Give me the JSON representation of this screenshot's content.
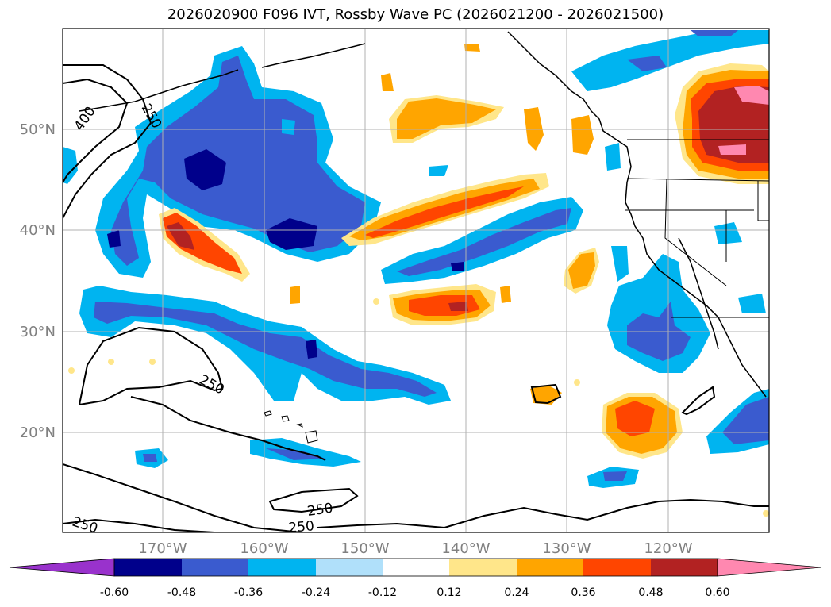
{
  "title": "2026020900 F096 IVT, Rossby Wave PC (2026021200 - 2026021500)",
  "map": {
    "lat_labels": [
      "20°N",
      "30°N",
      "40°N",
      "50°N"
    ],
    "lon_labels": [
      "170°W",
      "160°W",
      "150°W",
      "140°W",
      "130°W",
      "120°W"
    ],
    "contour_labels": [
      "250",
      "400",
      "250",
      "250",
      "250",
      "250"
    ]
  },
  "colorbar": {
    "colors": [
      "#9932cc",
      "#00008b",
      "#3a5bcf",
      "#00b4f0",
      "#b0e0fa",
      "#ffffff",
      "#ffe68a",
      "#ffa500",
      "#ff4500",
      "#b22222",
      "#ff88b0"
    ],
    "ticks": [
      "-0.60",
      "-0.48",
      "-0.36",
      "-0.24",
      "-0.12",
      "0.12",
      "0.24",
      "0.36",
      "0.48",
      "0.60"
    ]
  }
}
